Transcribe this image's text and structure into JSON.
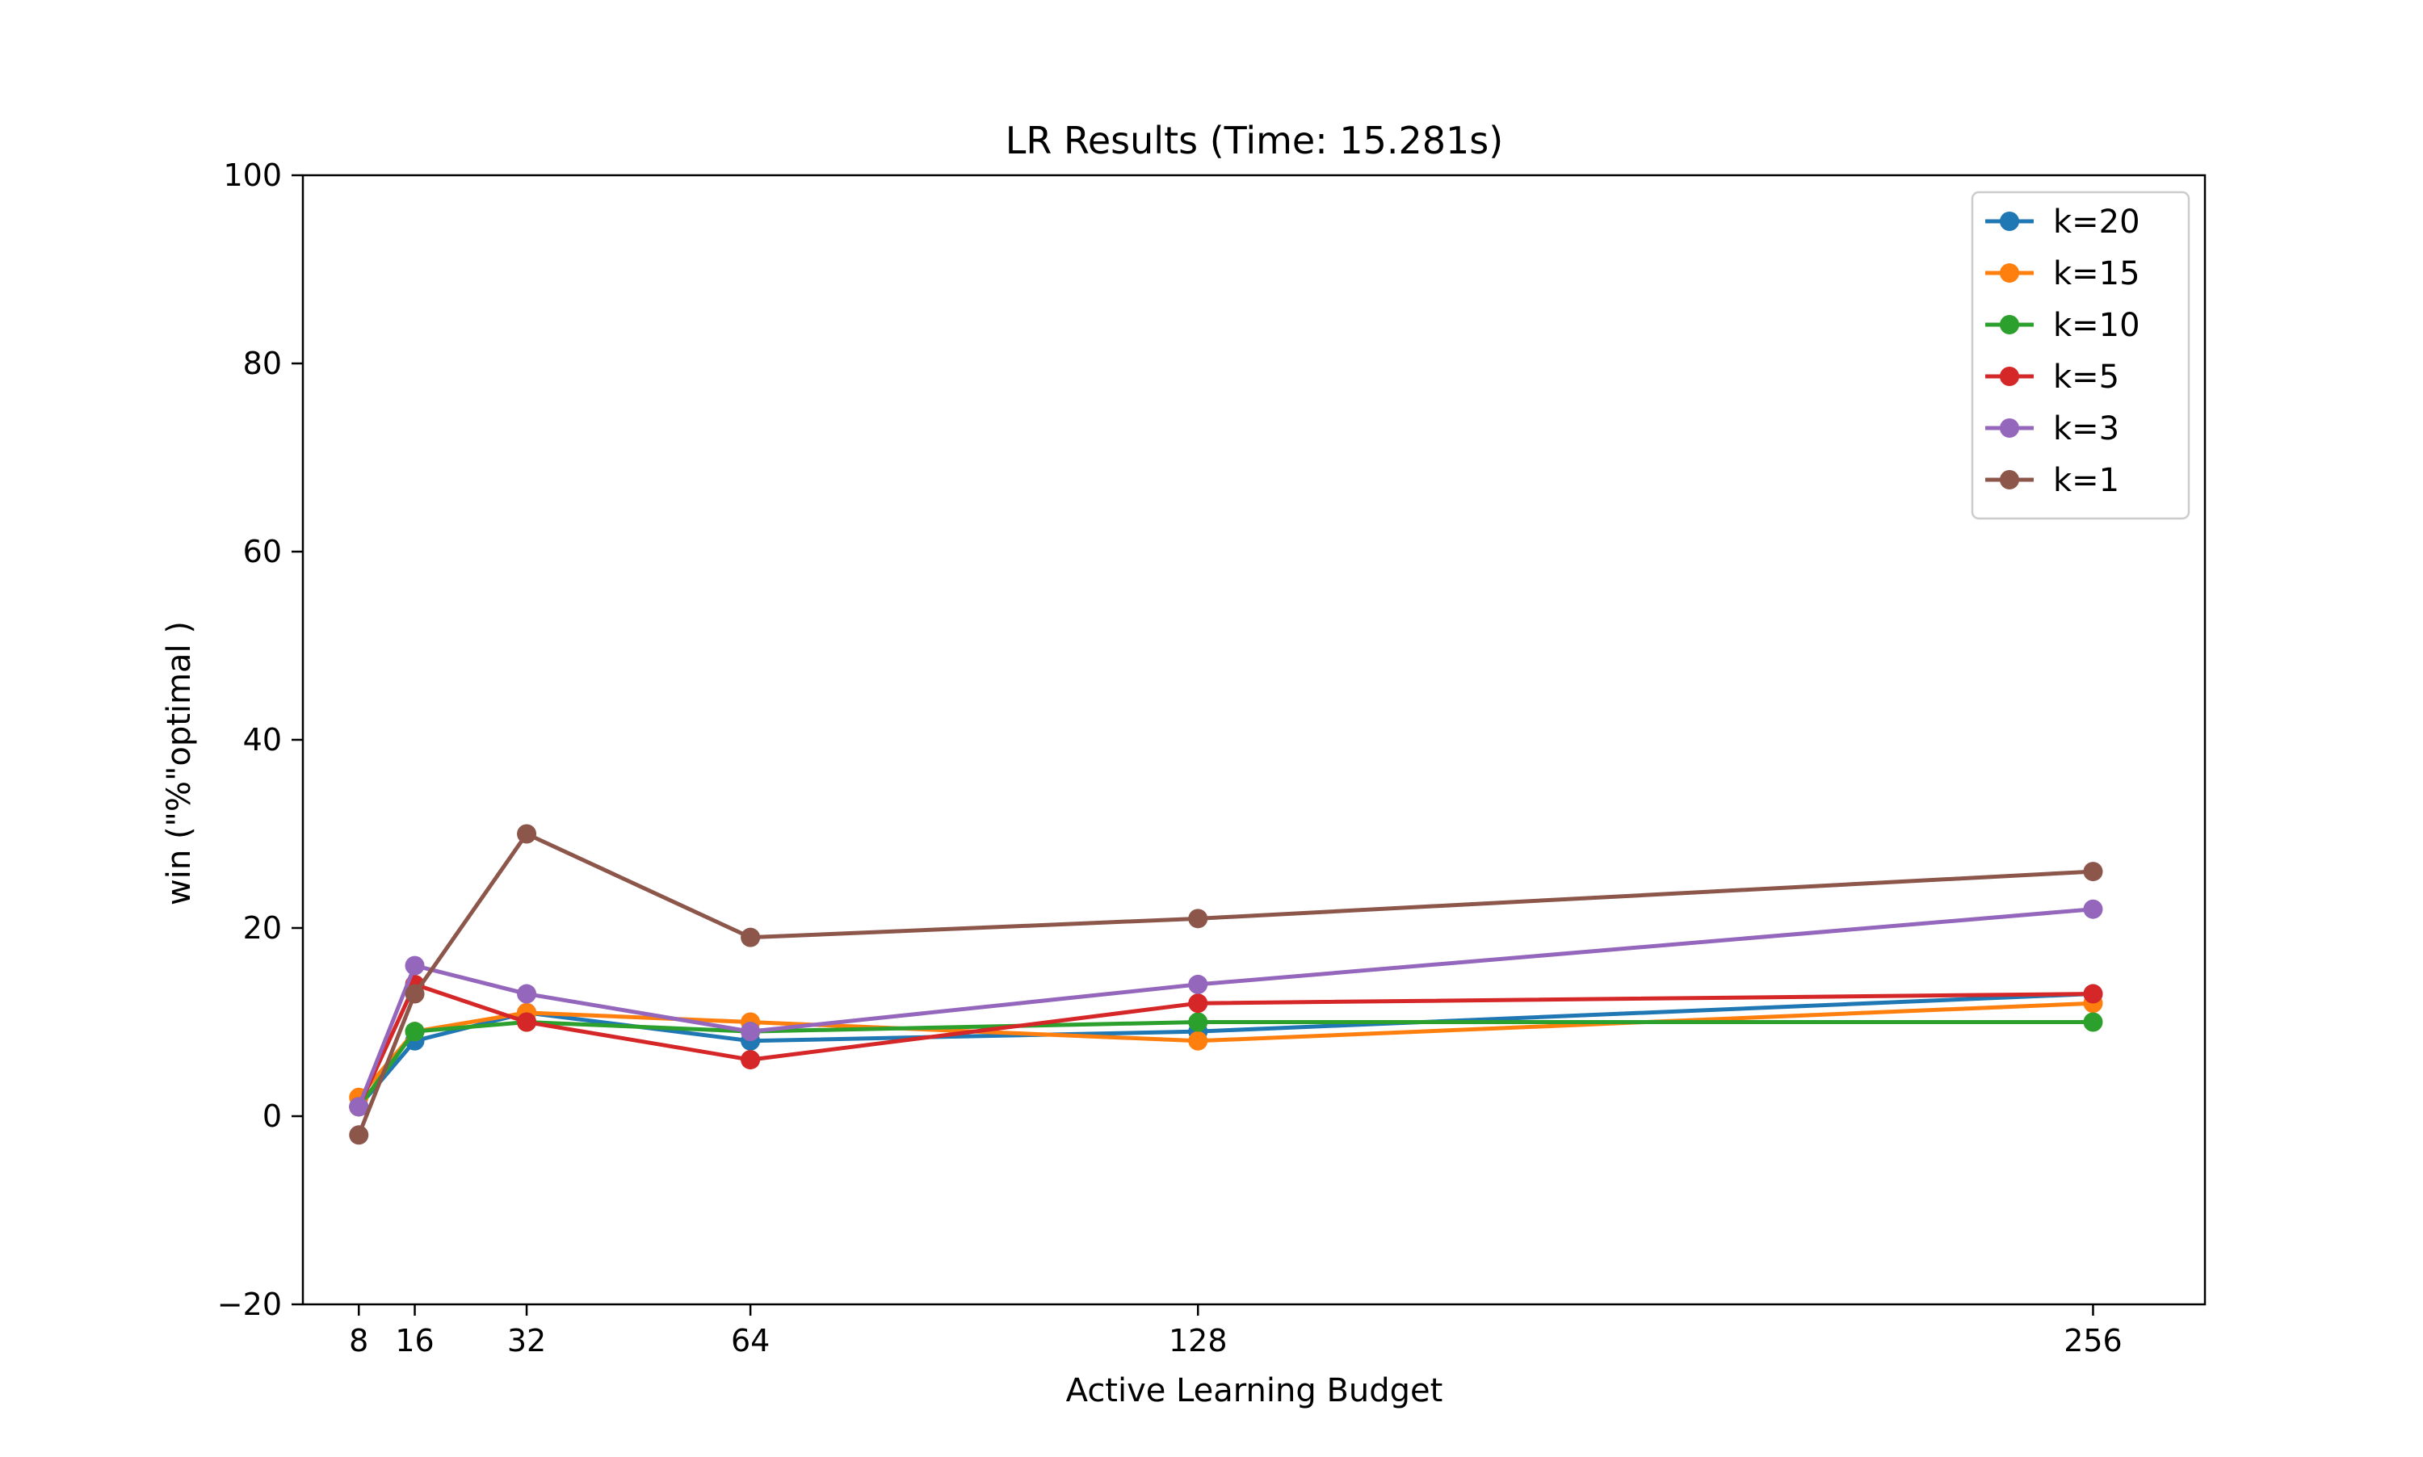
{
  "chart_data": {
    "type": "line",
    "title": "LR Results (Time: 15.281s)",
    "xlabel": "Active Learning Budget",
    "ylabel": "win (\"%\"optimal )",
    "xlim": [
      0,
      272
    ],
    "ylim": [
      -20,
      100
    ],
    "x": [
      8,
      16,
      32,
      64,
      128,
      256
    ],
    "xticks": [
      8,
      16,
      32,
      64,
      128,
      256
    ],
    "xtick_labels": [
      "8",
      "16",
      "32",
      "64",
      "128",
      "256"
    ],
    "yticks": [
      -20,
      0,
      20,
      40,
      60,
      80,
      100
    ],
    "ytick_labels": [
      "−20",
      "0",
      "20",
      "40",
      "60",
      "80",
      "100"
    ],
    "grid": false,
    "legend_position": "top-right",
    "series": [
      {
        "name": "k=20",
        "color": "#1f77b4",
        "values": [
          1,
          8,
          11,
          8,
          9,
          13
        ]
      },
      {
        "name": "k=15",
        "color": "#ff7f0e",
        "values": [
          2,
          9,
          11,
          10,
          8,
          12
        ]
      },
      {
        "name": "k=10",
        "color": "#2ca02c",
        "values": [
          1,
          9,
          10,
          9,
          10,
          10
        ]
      },
      {
        "name": "k=5",
        "color": "#d62728",
        "values": [
          1,
          14,
          10,
          6,
          12,
          13
        ]
      },
      {
        "name": "k=3",
        "color": "#9467bd",
        "values": [
          1,
          16,
          13,
          9,
          14,
          22
        ]
      },
      {
        "name": "k=1",
        "color": "#8c564b",
        "values": [
          -2,
          13,
          30,
          19,
          21,
          26
        ]
      }
    ]
  }
}
